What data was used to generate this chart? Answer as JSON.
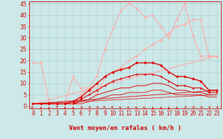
{
  "bg_color": "#cce8e8",
  "grid_color": "#aacccc",
  "xlabel": "Vent moyen/en rafales ( km/h )",
  "xlabel_color": "#cc0000",
  "xlabel_fontsize": 6.5,
  "tick_color": "#cc0000",
  "tick_fontsize": 5.5,
  "xlim": [
    -0.5,
    23.5
  ],
  "ylim": [
    -1,
    46
  ],
  "yticks": [
    0,
    5,
    10,
    15,
    20,
    25,
    30,
    35,
    40,
    45
  ],
  "xticks": [
    0,
    1,
    2,
    3,
    4,
    5,
    6,
    7,
    8,
    9,
    10,
    11,
    12,
    13,
    14,
    15,
    16,
    17,
    18,
    19,
    20,
    21,
    22,
    23
  ],
  "series": [
    {
      "x": [
        0,
        1,
        2,
        3,
        4,
        5,
        6,
        7,
        8,
        9,
        10,
        11,
        12,
        13,
        14,
        15,
        16,
        17,
        18,
        19,
        20,
        21,
        22,
        23
      ],
      "y": [
        1,
        1,
        1,
        1,
        1,
        1,
        5,
        8,
        13,
        25,
        34,
        42,
        45,
        43,
        39,
        40,
        35,
        30,
        38,
        45,
        31,
        22,
        22,
        22
      ],
      "color": "#ffaaaa",
      "lw": 0.8,
      "marker": "D",
      "ms": 1.8,
      "zorder": 3
    },
    {
      "x": [
        0,
        1,
        2,
        3,
        4,
        5,
        6,
        7,
        8,
        9,
        10,
        11,
        12,
        13,
        14,
        15,
        16,
        17,
        18,
        19,
        20,
        21,
        22,
        23
      ],
      "y": [
        19,
        19,
        2,
        1,
        1,
        13,
        8,
        8,
        5,
        13,
        15,
        17,
        20,
        22,
        25,
        27,
        29,
        32,
        35,
        36,
        38,
        38,
        22,
        22
      ],
      "color": "#ffaaaa",
      "lw": 0.8,
      "marker": "D",
      "ms": 1.8,
      "zorder": 3
    },
    {
      "x": [
        0,
        23
      ],
      "y": [
        1,
        22
      ],
      "color": "#ffaaaa",
      "lw": 0.8,
      "marker": null,
      "ms": 0,
      "zorder": 2
    },
    {
      "x": [
        0,
        1,
        2,
        3,
        4,
        5,
        6,
        7,
        8,
        9,
        10,
        11,
        12,
        13,
        14,
        15,
        16,
        17,
        18,
        19,
        20,
        21,
        22,
        23
      ],
      "y": [
        1,
        1,
        1,
        1,
        1,
        2,
        4,
        7,
        10,
        13,
        15,
        16,
        17,
        19,
        19,
        19,
        18,
        15,
        13,
        13,
        12,
        11,
        7,
        7
      ],
      "color": "#dd0000",
      "lw": 1.0,
      "marker": "D",
      "ms": 2.0,
      "zorder": 4
    },
    {
      "x": [
        0,
        1,
        2,
        3,
        4,
        5,
        6,
        7,
        8,
        9,
        10,
        11,
        12,
        13,
        14,
        15,
        16,
        17,
        18,
        19,
        20,
        21,
        22,
        23
      ],
      "y": [
        1,
        1,
        1,
        1,
        1,
        1,
        3,
        5,
        7,
        9,
        11,
        12,
        13,
        14,
        14,
        14,
        13,
        11,
        9,
        9,
        8,
        8,
        6,
        6
      ],
      "color": "#dd0000",
      "lw": 0.8,
      "marker": "D",
      "ms": 1.5,
      "zorder": 4
    },
    {
      "x": [
        0,
        1,
        2,
        3,
        4,
        5,
        6,
        7,
        8,
        9,
        10,
        11,
        12,
        13,
        14,
        15,
        16,
        17,
        18,
        19,
        20,
        21,
        22,
        23
      ],
      "y": [
        1,
        1,
        1,
        1,
        1,
        1,
        2,
        3,
        5,
        6,
        7,
        8,
        8,
        9,
        9,
        10,
        10,
        9,
        7,
        7,
        6,
        6,
        5,
        5
      ],
      "color": "#dd0000",
      "lw": 0.7,
      "marker": null,
      "ms": 0,
      "zorder": 4
    },
    {
      "x": [
        0,
        1,
        2,
        3,
        4,
        5,
        6,
        7,
        8,
        9,
        10,
        11,
        12,
        13,
        14,
        15,
        16,
        17,
        18,
        19,
        20,
        21,
        22,
        23
      ],
      "y": [
        1,
        1,
        1,
        1,
        1,
        1,
        1,
        2,
        3,
        4,
        5,
        5,
        6,
        6,
        6,
        7,
        7,
        6,
        5,
        5,
        5,
        5,
        4,
        4
      ],
      "color": "#dd0000",
      "lw": 0.6,
      "marker": null,
      "ms": 0,
      "zorder": 4
    },
    {
      "x": [
        0,
        23
      ],
      "y": [
        1,
        7
      ],
      "color": "#dd0000",
      "lw": 0.6,
      "marker": null,
      "ms": 0,
      "zorder": 4
    },
    {
      "x": [
        0,
        23
      ],
      "y": [
        1,
        5
      ],
      "color": "#dd0000",
      "lw": 0.5,
      "marker": null,
      "ms": 0,
      "zorder": 4
    }
  ],
  "arrow_directions": [
    4,
    2,
    2,
    6,
    2,
    2,
    7,
    7,
    7,
    5,
    5,
    3,
    3,
    3,
    3,
    2,
    2,
    2,
    2,
    7,
    7,
    7,
    7,
    7
  ]
}
